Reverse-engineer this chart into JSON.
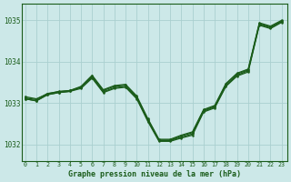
{
  "title": "Graphe pression niveau de la mer (hPa)",
  "background_color": "#cce8e8",
  "grid_color": "#aacfcf",
  "line_color": "#1a5c1a",
  "x_ticks": [
    0,
    1,
    2,
    3,
    4,
    5,
    6,
    7,
    8,
    9,
    10,
    11,
    12,
    13,
    14,
    15,
    16,
    17,
    18,
    19,
    20,
    21,
    22,
    23
  ],
  "y_ticks": [
    1032,
    1033,
    1034,
    1035
  ],
  "ylim": [
    1031.6,
    1035.4
  ],
  "xlim": [
    -0.3,
    23.5
  ],
  "lw": 0.9,
  "ms": 1.8,
  "series": [
    [
      1033.1,
      1033.05,
      1033.2,
      1033.25,
      1033.28,
      1033.35,
      1033.6,
      1033.25,
      1033.35,
      1033.38,
      1033.1,
      1032.55,
      1032.07,
      1032.07,
      1032.15,
      1032.22,
      1032.78,
      1032.88,
      1033.4,
      1033.65,
      1033.75,
      1034.88,
      1034.8,
      1034.95
    ],
    [
      1033.15,
      1033.1,
      1033.22,
      1033.28,
      1033.3,
      1033.38,
      1033.62,
      1033.27,
      1033.37,
      1033.4,
      1033.12,
      1032.58,
      1032.09,
      1032.09,
      1032.17,
      1032.25,
      1032.8,
      1032.9,
      1033.42,
      1033.67,
      1033.78,
      1034.9,
      1034.82,
      1034.97
    ],
    [
      1033.1,
      1033.05,
      1033.2,
      1033.25,
      1033.28,
      1033.38,
      1033.65,
      1033.3,
      1033.4,
      1033.43,
      1033.15,
      1032.6,
      1032.1,
      1032.1,
      1032.2,
      1032.28,
      1032.82,
      1032.92,
      1033.45,
      1033.7,
      1033.8,
      1034.92,
      1034.84,
      1034.98
    ],
    [
      1033.12,
      1033.08,
      1033.23,
      1033.27,
      1033.3,
      1033.4,
      1033.67,
      1033.32,
      1033.42,
      1033.45,
      1033.17,
      1032.62,
      1032.12,
      1032.12,
      1032.22,
      1032.3,
      1032.84,
      1032.94,
      1033.47,
      1033.72,
      1033.82,
      1034.94,
      1034.86,
      1035.0
    ]
  ],
  "series_x": [
    0,
    1,
    2,
    3,
    4,
    5,
    6,
    7,
    8,
    9,
    10,
    11,
    12,
    13,
    14,
    15,
    16,
    17,
    18,
    19,
    20,
    21,
    22,
    23
  ]
}
